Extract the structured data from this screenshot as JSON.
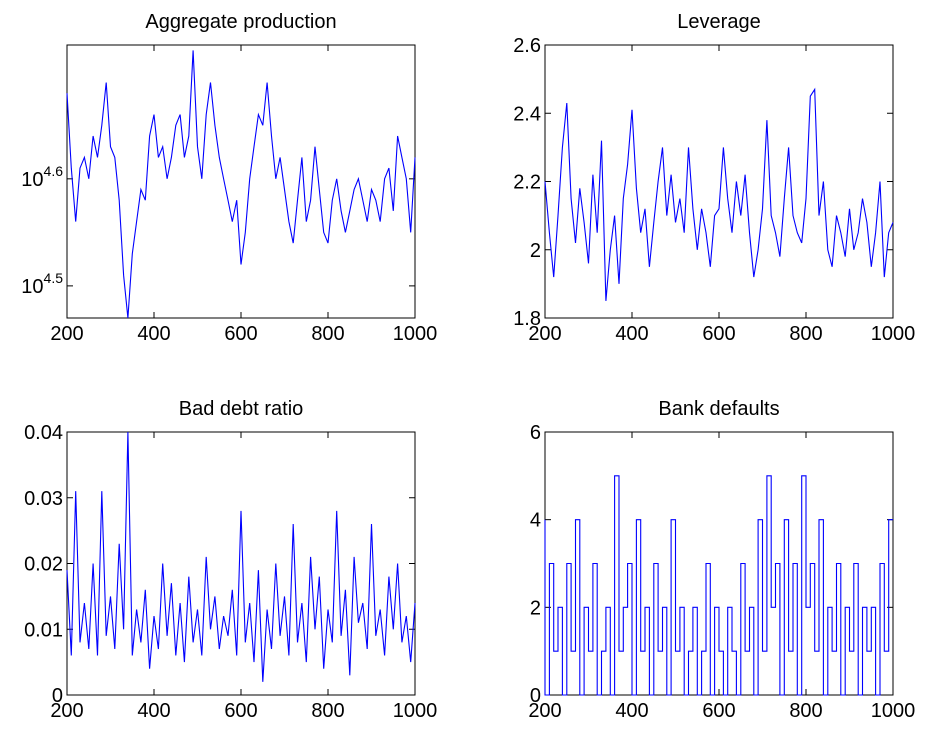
{
  "colors": {
    "series": "#0000ff",
    "axes": "#000000",
    "background": "#ffffff"
  },
  "chart_data": [
    {
      "type": "line",
      "title": "Aggregate production",
      "xlabel": "",
      "ylabel": "",
      "xlim": [
        200,
        1000
      ],
      "ylim": [
        4.47,
        4.725
      ],
      "y_scale": "log10",
      "xticks": [
        {
          "v": 200,
          "label": "200"
        },
        {
          "v": 400,
          "label": "400"
        },
        {
          "v": 600,
          "label": "600"
        },
        {
          "v": 800,
          "label": "800"
        },
        {
          "v": 1000,
          "label": "1000"
        }
      ],
      "yticks": [
        {
          "v": 4.5,
          "base": "10",
          "exp": "4.5"
        },
        {
          "v": 4.6,
          "base": "10",
          "exp": "4.6"
        }
      ],
      "series": [
        {
          "color": "#0000ff",
          "x": [
            200,
            210,
            220,
            230,
            240,
            250,
            260,
            270,
            280,
            290,
            300,
            310,
            320,
            330,
            340,
            350,
            360,
            370,
            380,
            390,
            400,
            410,
            420,
            430,
            440,
            450,
            460,
            470,
            480,
            490,
            500,
            510,
            520,
            530,
            540,
            550,
            560,
            570,
            580,
            590,
            600,
            610,
            620,
            630,
            640,
            650,
            660,
            670,
            680,
            690,
            700,
            710,
            720,
            730,
            740,
            750,
            760,
            770,
            780,
            790,
            800,
            810,
            820,
            830,
            840,
            850,
            860,
            870,
            880,
            890,
            900,
            910,
            920,
            930,
            940,
            950,
            960,
            970,
            980,
            990,
            1000
          ],
          "y": [
            4.68,
            4.61,
            4.56,
            4.61,
            4.62,
            4.6,
            4.64,
            4.62,
            4.65,
            4.69,
            4.63,
            4.62,
            4.58,
            4.51,
            4.47,
            4.53,
            4.56,
            4.59,
            4.58,
            4.64,
            4.66,
            4.62,
            4.63,
            4.6,
            4.62,
            4.65,
            4.66,
            4.62,
            4.64,
            4.72,
            4.63,
            4.6,
            4.66,
            4.69,
            4.65,
            4.62,
            4.6,
            4.58,
            4.56,
            4.58,
            4.52,
            4.55,
            4.6,
            4.63,
            4.66,
            4.65,
            4.69,
            4.64,
            4.6,
            4.62,
            4.59,
            4.56,
            4.54,
            4.58,
            4.62,
            4.56,
            4.58,
            4.63,
            4.59,
            4.55,
            4.54,
            4.58,
            4.6,
            4.57,
            4.55,
            4.57,
            4.59,
            4.6,
            4.58,
            4.56,
            4.59,
            4.58,
            4.56,
            4.6,
            4.61,
            4.57,
            4.64,
            4.62,
            4.6,
            4.55,
            4.62
          ]
        }
      ]
    },
    {
      "type": "line",
      "title": "Leverage",
      "xlabel": "",
      "ylabel": "",
      "xlim": [
        200,
        1000
      ],
      "ylim": [
        1.8,
        2.6
      ],
      "xticks": [
        {
          "v": 200,
          "label": "200"
        },
        {
          "v": 400,
          "label": "400"
        },
        {
          "v": 600,
          "label": "600"
        },
        {
          "v": 800,
          "label": "800"
        },
        {
          "v": 1000,
          "label": "1000"
        }
      ],
      "yticks": [
        {
          "v": 1.8,
          "label": "1.8"
        },
        {
          "v": 2.0,
          "label": "2"
        },
        {
          "v": 2.2,
          "label": "2.2"
        },
        {
          "v": 2.4,
          "label": "2.4"
        },
        {
          "v": 2.6,
          "label": "2.6"
        }
      ],
      "series": [
        {
          "color": "#0000ff",
          "x": [
            200,
            210,
            220,
            230,
            240,
            250,
            260,
            270,
            280,
            290,
            300,
            310,
            320,
            330,
            340,
            350,
            360,
            370,
            380,
            390,
            400,
            410,
            420,
            430,
            440,
            450,
            460,
            470,
            480,
            490,
            500,
            510,
            520,
            530,
            540,
            550,
            560,
            570,
            580,
            590,
            600,
            610,
            620,
            630,
            640,
            650,
            660,
            670,
            680,
            690,
            700,
            710,
            720,
            730,
            740,
            750,
            760,
            770,
            780,
            790,
            800,
            810,
            820,
            830,
            840,
            850,
            860,
            870,
            880,
            890,
            900,
            910,
            920,
            930,
            940,
            950,
            960,
            970,
            980,
            990,
            1000
          ],
          "y": [
            2.2,
            2.05,
            1.92,
            2.1,
            2.3,
            2.43,
            2.15,
            2.02,
            2.18,
            2.08,
            1.96,
            2.22,
            2.05,
            2.32,
            1.85,
            2.0,
            2.1,
            1.9,
            2.15,
            2.25,
            2.41,
            2.18,
            2.05,
            2.12,
            1.95,
            2.08,
            2.2,
            2.3,
            2.1,
            2.22,
            2.08,
            2.15,
            2.05,
            2.3,
            2.12,
            2.0,
            2.12,
            2.05,
            1.95,
            2.1,
            2.12,
            2.3,
            2.15,
            2.05,
            2.2,
            2.1,
            2.22,
            2.05,
            1.92,
            2.0,
            2.12,
            2.38,
            2.1,
            2.05,
            1.98,
            2.15,
            2.3,
            2.1,
            2.05,
            2.02,
            2.15,
            2.45,
            2.47,
            2.1,
            2.2,
            2.0,
            1.95,
            2.1,
            2.05,
            1.98,
            2.12,
            2.0,
            2.05,
            2.15,
            2.08,
            1.95,
            2.05,
            2.2,
            1.92,
            2.05,
            2.08
          ]
        }
      ]
    },
    {
      "type": "line",
      "title": "Bad debt ratio",
      "xlabel": "",
      "ylabel": "",
      "xlim": [
        200,
        1000
      ],
      "ylim": [
        0,
        0.04
      ],
      "xticks": [
        {
          "v": 200,
          "label": "200"
        },
        {
          "v": 400,
          "label": "400"
        },
        {
          "v": 600,
          "label": "600"
        },
        {
          "v": 800,
          "label": "800"
        },
        {
          "v": 1000,
          "label": "1000"
        }
      ],
      "yticks": [
        {
          "v": 0,
          "label": "0"
        },
        {
          "v": 0.01,
          "label": "0.01"
        },
        {
          "v": 0.02,
          "label": "0.02"
        },
        {
          "v": 0.03,
          "label": "0.03"
        },
        {
          "v": 0.04,
          "label": "0.04"
        }
      ],
      "series": [
        {
          "color": "#0000ff",
          "x": [
            200,
            210,
            220,
            230,
            240,
            250,
            260,
            270,
            280,
            290,
            300,
            310,
            320,
            330,
            340,
            350,
            360,
            370,
            380,
            390,
            400,
            410,
            420,
            430,
            440,
            450,
            460,
            470,
            480,
            490,
            500,
            510,
            520,
            530,
            540,
            550,
            560,
            570,
            580,
            590,
            600,
            610,
            620,
            630,
            640,
            650,
            660,
            670,
            680,
            690,
            700,
            710,
            720,
            730,
            740,
            750,
            760,
            770,
            780,
            790,
            800,
            810,
            820,
            830,
            840,
            850,
            860,
            870,
            880,
            890,
            900,
            910,
            920,
            930,
            940,
            950,
            960,
            970,
            980,
            990,
            1000
          ],
          "y": [
            0.019,
            0.006,
            0.031,
            0.008,
            0.014,
            0.007,
            0.02,
            0.006,
            0.031,
            0.009,
            0.015,
            0.007,
            0.023,
            0.01,
            0.04,
            0.006,
            0.013,
            0.008,
            0.016,
            0.004,
            0.012,
            0.007,
            0.02,
            0.009,
            0.017,
            0.006,
            0.014,
            0.005,
            0.018,
            0.008,
            0.013,
            0.006,
            0.021,
            0.01,
            0.015,
            0.007,
            0.012,
            0.009,
            0.016,
            0.006,
            0.028,
            0.008,
            0.014,
            0.005,
            0.019,
            0.002,
            0.013,
            0.007,
            0.02,
            0.009,
            0.015,
            0.006,
            0.026,
            0.008,
            0.014,
            0.005,
            0.021,
            0.01,
            0.018,
            0.004,
            0.013,
            0.008,
            0.028,
            0.009,
            0.016,
            0.003,
            0.021,
            0.011,
            0.014,
            0.007,
            0.026,
            0.009,
            0.013,
            0.006,
            0.018,
            0.01,
            0.02,
            0.008,
            0.012,
            0.005,
            0.014
          ]
        }
      ]
    },
    {
      "type": "line",
      "title": "Bank defaults",
      "xlabel": "",
      "ylabel": "",
      "xlim": [
        200,
        1000
      ],
      "ylim": [
        0,
        6
      ],
      "xticks": [
        {
          "v": 200,
          "label": "200"
        },
        {
          "v": 400,
          "label": "400"
        },
        {
          "v": 600,
          "label": "600"
        },
        {
          "v": 800,
          "label": "800"
        },
        {
          "v": 1000,
          "label": "1000"
        }
      ],
      "yticks": [
        {
          "v": 0,
          "label": "0"
        },
        {
          "v": 2,
          "label": "2"
        },
        {
          "v": 4,
          "label": "4"
        },
        {
          "v": 6,
          "label": "6"
        }
      ],
      "series": [
        {
          "color": "#0000ff",
          "step": true,
          "x": [
            200,
            210,
            220,
            230,
            240,
            250,
            260,
            270,
            280,
            290,
            300,
            310,
            320,
            330,
            340,
            350,
            360,
            370,
            380,
            390,
            400,
            410,
            420,
            430,
            440,
            450,
            460,
            470,
            480,
            490,
            500,
            510,
            520,
            530,
            540,
            550,
            560,
            570,
            580,
            590,
            600,
            610,
            620,
            630,
            640,
            650,
            660,
            670,
            680,
            690,
            700,
            710,
            720,
            730,
            740,
            750,
            760,
            770,
            780,
            790,
            800,
            810,
            820,
            830,
            840,
            850,
            860,
            870,
            880,
            890,
            900,
            910,
            920,
            930,
            940,
            950,
            960,
            970,
            980,
            990,
            1000
          ],
          "y": [
            4,
            0,
            3,
            1,
            2,
            0,
            3,
            1,
            4,
            0,
            2,
            1,
            3,
            0,
            1,
            2,
            0,
            5,
            1,
            2,
            3,
            0,
            4,
            1,
            2,
            0,
            3,
            1,
            2,
            0,
            4,
            1,
            2,
            0,
            1,
            2,
            0,
            1,
            3,
            0,
            2,
            1,
            0,
            2,
            1,
            0,
            3,
            1,
            2,
            0,
            4,
            1,
            5,
            2,
            3,
            0,
            4,
            1,
            3,
            0,
            5,
            2,
            3,
            1,
            4,
            0,
            2,
            1,
            3,
            0,
            2,
            1,
            3,
            0,
            2,
            1,
            2,
            0,
            3,
            1,
            4
          ]
        }
      ]
    }
  ]
}
